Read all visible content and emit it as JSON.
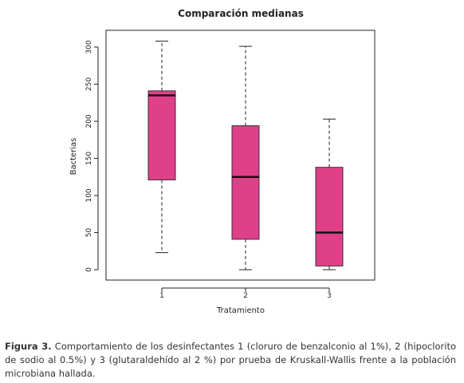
{
  "chart_data": {
    "type": "boxplot",
    "title": "Comparación medianas",
    "xlabel": "Tratamiento",
    "ylabel": "Bacterias",
    "categories": [
      "1",
      "2",
      "3"
    ],
    "ylim": [
      -10,
      320
    ],
    "yticks": [
      "0",
      "50",
      "100",
      "150",
      "200",
      "250",
      "300"
    ],
    "box_color": "#e0408a",
    "grid": false,
    "boxes": [
      {
        "category": "1",
        "min": 23,
        "q1": 121,
        "median": 235,
        "q3": 241,
        "max": 308
      },
      {
        "category": "2",
        "min": 0,
        "q1": 41,
        "median": 125,
        "q3": 194,
        "max": 301
      },
      {
        "category": "3",
        "min": 0,
        "q1": 5,
        "median": 50,
        "q3": 138,
        "max": 203
      }
    ]
  },
  "caption": {
    "lead": "Figura 3.",
    "text": " Comportamiento de los desinfectantes 1 (cloruro de benzalconio al 1%), 2 (hipoclorito de sodio al 0.5%) y 3 (glutaraldehído al 2 %) por prueba de Kruskall-Wallis frente a la población microbiana hallada."
  }
}
